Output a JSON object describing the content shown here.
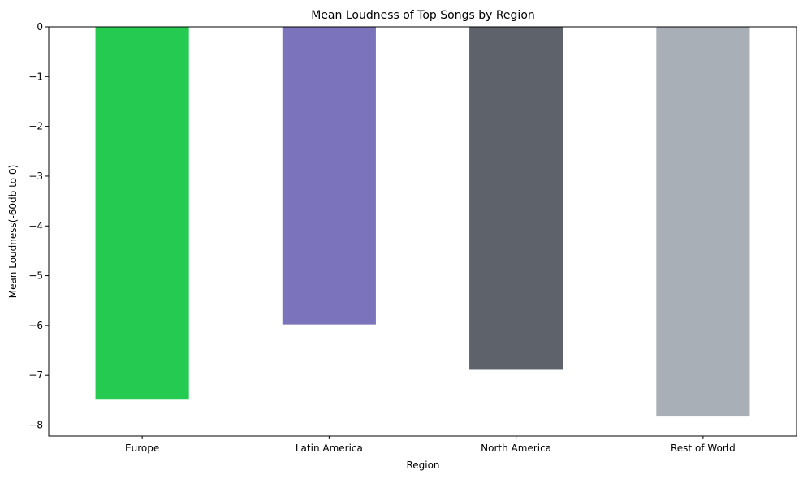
{
  "chart_data": {
    "type": "bar",
    "title": "Mean Loudness of Top Songs by Region",
    "xlabel": "Region",
    "ylabel": "Mean Loudness(-60db to 0)",
    "categories": [
      "Europe",
      "Latin America",
      "North America",
      "Rest of World"
    ],
    "values": [
      -7.49,
      -5.98,
      -6.89,
      -7.83
    ],
    "colors": [
      "#25cb50",
      "#7b73bb",
      "#5e636b",
      "#a9afb7"
    ],
    "ylim": [
      -8.22,
      0
    ],
    "yticks": [
      0,
      -1,
      -2,
      -3,
      -4,
      -5,
      -6,
      -7,
      -8
    ],
    "ytick_labels": [
      "0",
      "−1",
      "−2",
      "−3",
      "−4",
      "−5",
      "−6",
      "−7",
      "−8"
    ],
    "grid": false,
    "legend": "none"
  }
}
